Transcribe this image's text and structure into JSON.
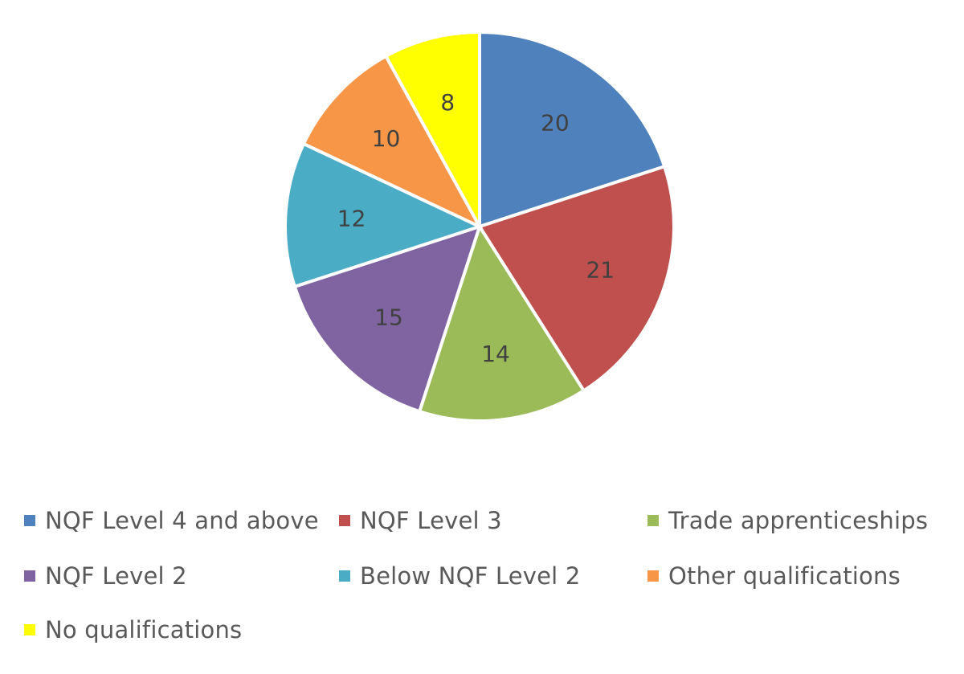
{
  "chart_data": {
    "type": "pie",
    "title": "",
    "categories": [
      "NQF Level 4 and above",
      "NQF Level 3",
      "Trade apprenticeships",
      "NQF Level 2",
      "Below NQF Level 2",
      "Other qualifications",
      "No qualifications"
    ],
    "values": [
      20,
      21,
      14,
      15,
      12,
      10,
      8
    ],
    "colors": [
      "#4F81BD",
      "#C0504D",
      "#9BBB59",
      "#8064A2",
      "#4BACC6",
      "#F79646",
      "#FFFF00"
    ],
    "data_labels": [
      "20",
      "21",
      "14",
      "15",
      "12",
      "10",
      "8"
    ],
    "start": "12 o'clock",
    "direction": "clockwise",
    "legend_position": "bottom"
  },
  "legend": {
    "items": [
      {
        "label": "NQF Level 4 and above",
        "color": "#4F81BD"
      },
      {
        "label": "NQF Level 3",
        "color": "#C0504D"
      },
      {
        "label": "Trade apprenticeships",
        "color": "#9BBB59"
      },
      {
        "label": "NQF Level 2",
        "color": "#8064A2"
      },
      {
        "label": "Below NQF Level 2",
        "color": "#4BACC6"
      },
      {
        "label": "Other qualifications",
        "color": "#F79646"
      },
      {
        "label": "No qualifications",
        "color": "#FFFF00"
      }
    ]
  }
}
